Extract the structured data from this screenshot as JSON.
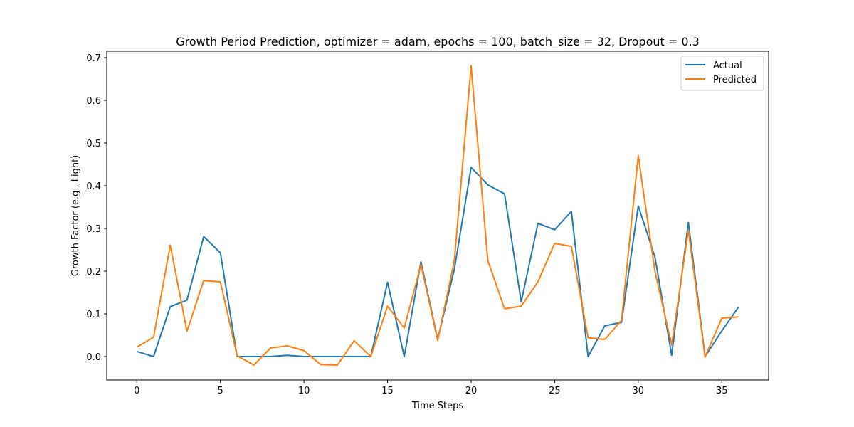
{
  "chart_data": {
    "type": "line",
    "title": "Growth Period Prediction, optimizer = adam, epochs = 100, batch_size = 32, Dropout = 0.3",
    "xlabel": "Time Steps",
    "ylabel": "Growth Factor (e.g., Light)",
    "xlim": [
      -1.8,
      37.8
    ],
    "ylim": [
      -0.055,
      0.715
    ],
    "xticks": [
      0,
      5,
      10,
      15,
      20,
      25,
      30,
      35
    ],
    "xtick_labels": [
      "0",
      "5",
      "10",
      "15",
      "20",
      "25",
      "30",
      "35"
    ],
    "yticks": [
      0.0,
      0.1,
      0.2,
      0.3,
      0.4,
      0.5,
      0.6,
      0.7
    ],
    "ytick_labels": [
      "0.0",
      "0.1",
      "0.2",
      "0.3",
      "0.4",
      "0.5",
      "0.6",
      "0.7"
    ],
    "grid": false,
    "legend_position": "top-right",
    "x": [
      0,
      1,
      2,
      3,
      4,
      5,
      6,
      7,
      8,
      9,
      10,
      11,
      12,
      13,
      14,
      15,
      16,
      17,
      18,
      19,
      20,
      21,
      22,
      23,
      24,
      25,
      26,
      27,
      28,
      29,
      30,
      31,
      32,
      33,
      34,
      35,
      36
    ],
    "series": [
      {
        "name": "Actual",
        "color": "#1f77b4",
        "values": [
          0.012,
          0.0,
          0.117,
          0.132,
          0.281,
          0.243,
          0.0,
          0.0,
          0.0,
          0.003,
          0.0,
          0.0,
          0.0,
          0.0,
          0.0,
          0.174,
          0.0,
          0.222,
          0.04,
          0.205,
          0.443,
          0.402,
          0.381,
          0.128,
          0.312,
          0.297,
          0.34,
          0.0,
          0.072,
          0.08,
          0.353,
          0.233,
          0.003,
          0.314,
          0.0,
          0.06,
          0.116
        ]
      },
      {
        "name": "Predicted",
        "color": "#ff7f0e",
        "values": [
          0.022,
          0.045,
          0.261,
          0.059,
          0.178,
          0.175,
          0.002,
          -0.02,
          0.02,
          0.025,
          0.014,
          -0.019,
          -0.02,
          0.037,
          0.0,
          0.118,
          0.067,
          0.215,
          0.038,
          0.225,
          0.681,
          0.225,
          0.112,
          0.118,
          0.175,
          0.265,
          0.258,
          0.044,
          0.04,
          0.085,
          0.47,
          0.2,
          0.027,
          0.296,
          -0.001,
          0.09,
          0.093
        ]
      }
    ]
  }
}
